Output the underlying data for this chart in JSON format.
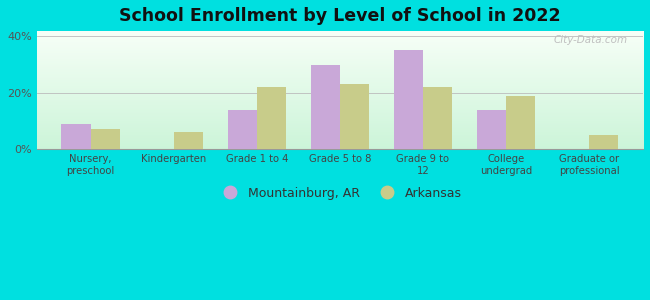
{
  "title": "School Enrollment by Level of School in 2022",
  "categories": [
    "Nursery,\npreschool",
    "Kindergarten",
    "Grade 1 to 4",
    "Grade 5 to 8",
    "Grade 9 to\n12",
    "College\nundergrad",
    "Graduate or\nprofessional"
  ],
  "mountainburg": [
    9,
    0,
    14,
    30,
    35,
    14,
    0
  ],
  "arkansas": [
    7,
    6,
    22,
    23,
    22,
    19,
    5
  ],
  "bar_color_mountainburg": "#c9a8d8",
  "bar_color_arkansas": "#c8cc8a",
  "background_outer": "#00e0e0",
  "ylim": [
    0,
    42
  ],
  "yticks": [
    0,
    20,
    40
  ],
  "ytick_labels": [
    "0%",
    "20%",
    "40%"
  ],
  "legend_label_1": "Mountainburg, AR",
  "legend_label_2": "Arkansas",
  "bar_width": 0.35,
  "watermark": "City-Data.com",
  "figsize": [
    6.5,
    3.0
  ],
  "dpi": 100
}
